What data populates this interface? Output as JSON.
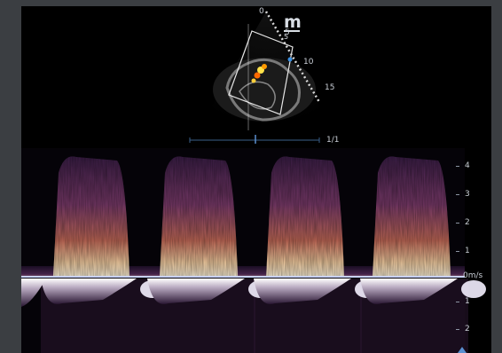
{
  "header": {
    "logo_glyph": "m",
    "logo_sub": "5"
  },
  "sector": {
    "depth_labels": [
      "0",
      "5",
      "10",
      "15"
    ]
  },
  "timeline": {
    "frame_counter": "1/1"
  },
  "velocity_scale": {
    "unit": "m/s",
    "labels": [
      "4",
      "3",
      "2",
      "1",
      "0m/s",
      "1",
      "2"
    ]
  },
  "colors": {
    "background": "#3b3e42",
    "viewport": "#000000",
    "baseline": "#c9d2ff",
    "spectral_hot": "#fff4da",
    "spectral_mid": "#c46a58",
    "spectral_low": "#3a1d46",
    "doppler_red": "#ff6a00",
    "doppler_yellow": "#ffe24a",
    "doppler_blue": "#3b8fe0"
  }
}
